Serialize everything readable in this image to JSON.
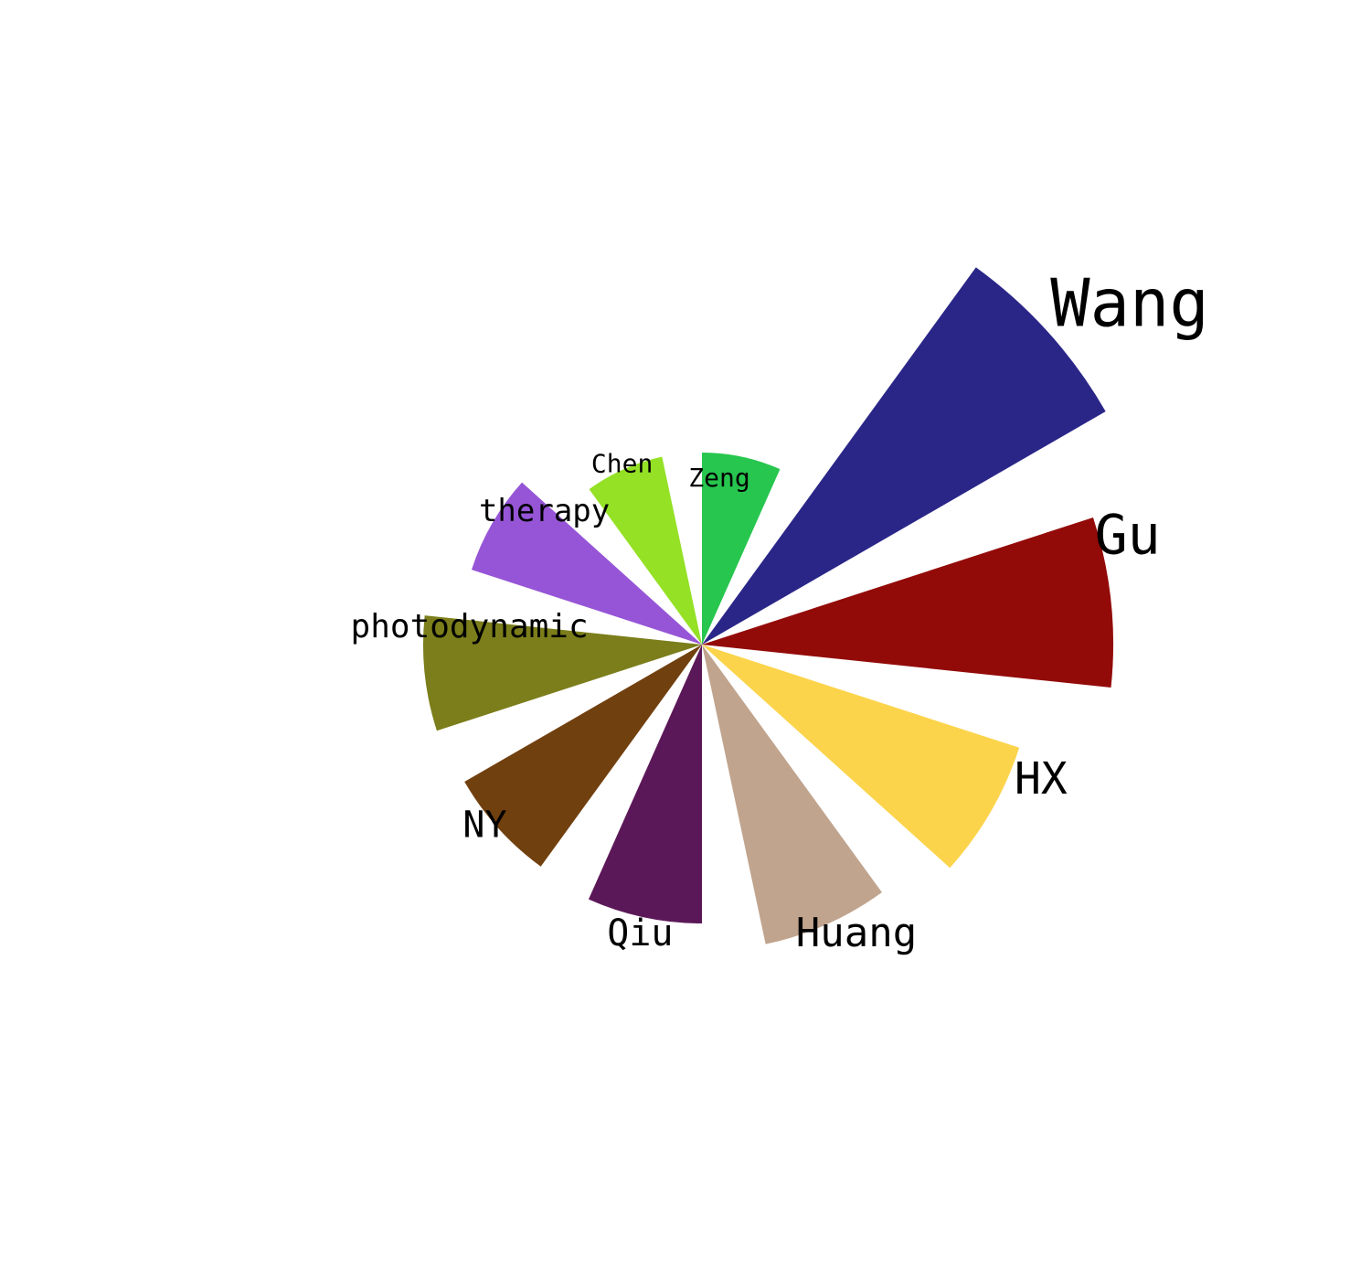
{
  "chart_data": {
    "type": "polar-bar",
    "title": "",
    "categories": [
      "Zeng",
      "Wang",
      "Gu",
      "HX",
      "Huang",
      "Qiu",
      "NY",
      "photodynamic",
      "therapy",
      "Chen"
    ],
    "values": [
      210,
      510,
      450,
      365,
      335,
      305,
      300,
      305,
      265,
      210
    ],
    "colors": [
      "#27c64e",
      "#2a2688",
      "#930b09",
      "#fcd44b",
      "#c0a48e",
      "#5b1858",
      "#71400f",
      "#7b7e1a",
      "#9655d6",
      "#94e126"
    ],
    "label_sizes": [
      28,
      72,
      60,
      48,
      44,
      40,
      40,
      36,
      34,
      28
    ]
  }
}
